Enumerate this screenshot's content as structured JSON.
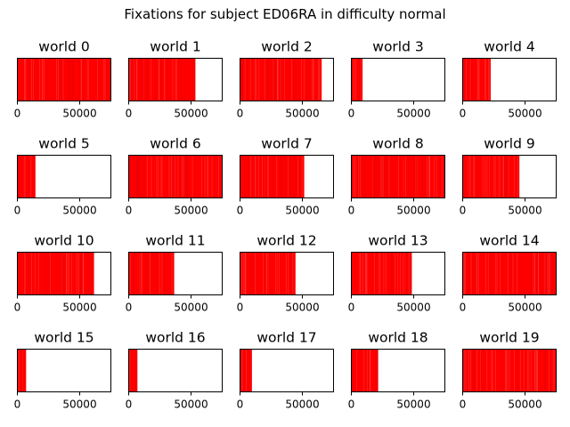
{
  "figure": {
    "title": "Fixations for subject ED06RA in difficulty normal"
  },
  "chart_data": {
    "type": "event-strip",
    "title": "Fixations for subject ED06RA in difficulty normal",
    "grid": false,
    "xlim": [
      0,
      75000
    ],
    "xticks": [
      0,
      50000
    ],
    "xtick_labels": [
      "0",
      "50000"
    ],
    "yticks": [],
    "event_color": "#ff0000",
    "panels": [
      {
        "title": "world 0",
        "extent": 75000
      },
      {
        "title": "world 1",
        "extent": 53500
      },
      {
        "title": "world 2",
        "extent": 65500
      },
      {
        "title": "world 3",
        "extent": 9000
      },
      {
        "title": "world 4",
        "extent": 22500
      },
      {
        "title": "world 5",
        "extent": 14500
      },
      {
        "title": "world 6",
        "extent": 75000
      },
      {
        "title": "world 7",
        "extent": 51500
      },
      {
        "title": "world 8",
        "extent": 75000
      },
      {
        "title": "world 9",
        "extent": 45500
      },
      {
        "title": "world 10",
        "extent": 61500
      },
      {
        "title": "world 11",
        "extent": 36500
      },
      {
        "title": "world 12",
        "extent": 44500
      },
      {
        "title": "world 13",
        "extent": 48500
      },
      {
        "title": "world 14",
        "extent": 75000
      },
      {
        "title": "world 15",
        "extent": 7000
      },
      {
        "title": "world 16",
        "extent": 7000
      },
      {
        "title": "world 17",
        "extent": 9500
      },
      {
        "title": "world 18",
        "extent": 21500
      },
      {
        "title": "world 19",
        "extent": 75000
      }
    ]
  }
}
